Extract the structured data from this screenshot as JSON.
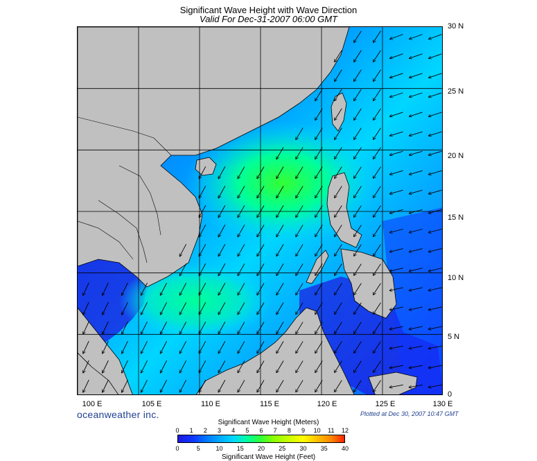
{
  "header": {
    "title": "Significant Wave Height with Wave Direction",
    "subtitle": "Valid For Dec-31-2007 06:00 GMT"
  },
  "map": {
    "land_color": "#c0c0c0",
    "coast_color": "#000000",
    "lat_labels": [
      "30 N",
      "25 N",
      "20 N",
      "15 N",
      "10 N",
      "5 N",
      "0"
    ],
    "lon_labels": [
      "100 E",
      "105 E",
      "110 E",
      "115 E",
      "120 E",
      "125 E",
      "130 E"
    ],
    "lon_range": [
      100,
      130
    ],
    "lat_range": [
      0,
      30
    ],
    "wave_color_scale": [
      "#1d1ae0",
      "#0e36ff",
      "#0077ff",
      "#00aaff",
      "#00d6ff",
      "#00ff9a",
      "#33ff33",
      "#8fff00"
    ]
  },
  "footer": {
    "brand": "oceanweather inc.",
    "plotted": "Plotted at Dec 30, 2007 10:47 GMT"
  },
  "legend": {
    "meters_title": "Significant Wave Height (Meters)",
    "feet_title": "Significant Wave Height (Feet)",
    "meters_ticks": [
      "0",
      "1",
      "2",
      "3",
      "4",
      "5",
      "6",
      "7",
      "8",
      "9",
      "10",
      "11",
      "12"
    ],
    "feet_ticks": [
      "0",
      "5",
      "10",
      "15",
      "20",
      "25",
      "30",
      "35",
      "40"
    ]
  }
}
